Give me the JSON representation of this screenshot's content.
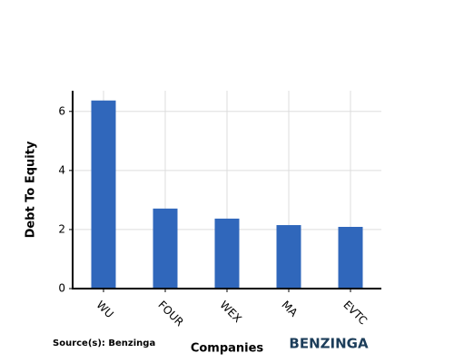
{
  "chart_data": {
    "type": "bar",
    "categories": [
      "WU",
      "FOUR",
      "WEX",
      "MA",
      "EVTC"
    ],
    "values": [
      6.37,
      2.71,
      2.37,
      2.15,
      2.09
    ],
    "color": "#3067bb",
    "ylim": [
      0,
      6.7
    ],
    "yticks": [
      0,
      2,
      4,
      6
    ],
    "grid": true,
    "xlabel": "Companies",
    "ylabel": "Debt To Equity",
    "source": "Source(s): Benzinga",
    "brand": "BENZINGA"
  }
}
